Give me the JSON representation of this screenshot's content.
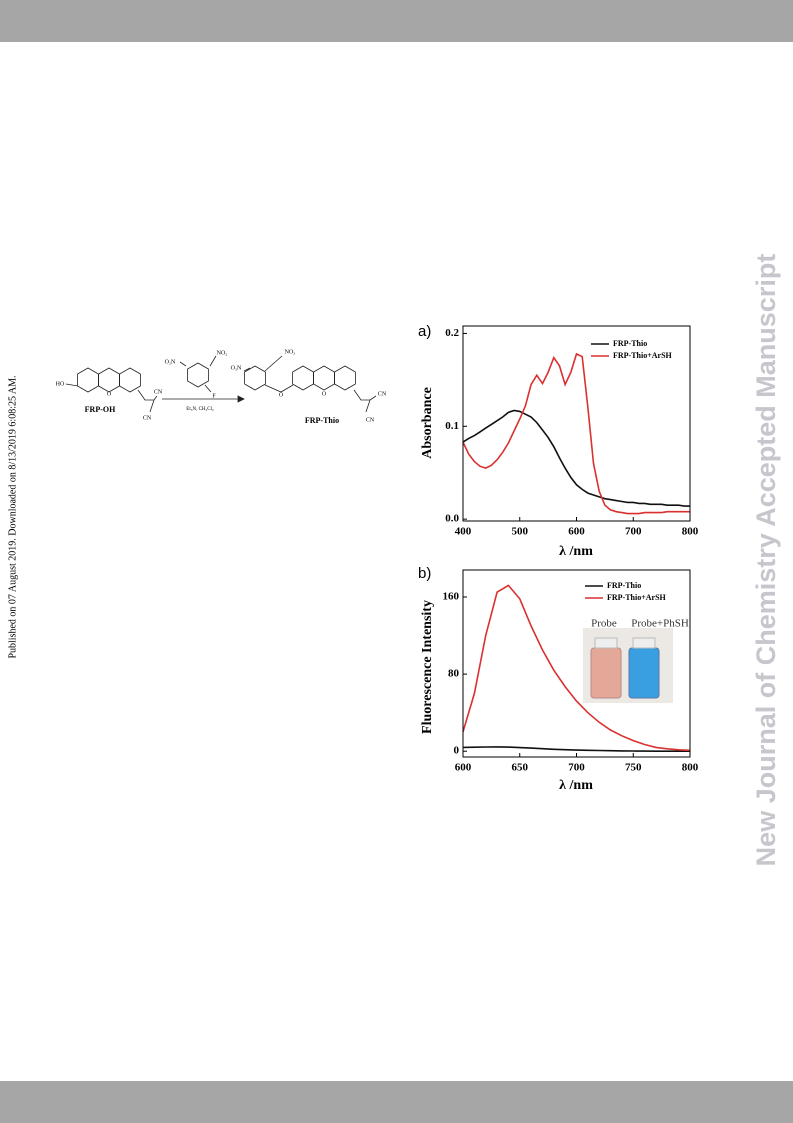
{
  "header_bar": true,
  "side_note": "Published on 07 August 2019. Downloaded on 8/13/2019 6:08:25 AM.",
  "watermark": "New Journal of Chemistry Accepted Manuscript",
  "scheme": {
    "reactant": "FRP-OH",
    "product": "FRP-Thio",
    "reagent": "Et₃N, CH₂Cl₂",
    "labels": [
      "HO",
      "O",
      "CN",
      "CN",
      "O₂N",
      "NO₂",
      "F",
      "O₂N",
      "NO₂",
      "O",
      "O",
      "CN",
      "CN"
    ]
  },
  "chart_data": [
    {
      "type": "line",
      "panel": "a)",
      "xlabel": "λ /nm",
      "ylabel": "Absorbance",
      "xlim": [
        400,
        800
      ],
      "xticks": [
        400,
        500,
        600,
        700,
        800
      ],
      "ylim": [
        -0.002,
        0.208
      ],
      "yticks": [
        {
          "value": 0,
          "label": "0.0"
        },
        0.1,
        0.2
      ],
      "x": [
        400,
        410,
        420,
        430,
        440,
        450,
        460,
        470,
        480,
        490,
        500,
        510,
        520,
        530,
        540,
        550,
        560,
        570,
        580,
        590,
        600,
        610,
        620,
        630,
        640,
        650,
        660,
        670,
        680,
        690,
        700,
        710,
        720,
        730,
        740,
        750,
        760,
        770,
        780,
        790,
        800
      ],
      "series": [
        {
          "name": "FRP-Thio",
          "color": "#111111",
          "values": [
            0.083,
            0.087,
            0.09,
            0.094,
            0.098,
            0.102,
            0.106,
            0.11,
            0.115,
            0.117,
            0.116,
            0.113,
            0.11,
            0.104,
            0.096,
            0.088,
            0.078,
            0.066,
            0.055,
            0.045,
            0.037,
            0.032,
            0.028,
            0.026,
            0.024,
            0.022,
            0.021,
            0.02,
            0.019,
            0.018,
            0.018,
            0.017,
            0.017,
            0.016,
            0.016,
            0.016,
            0.015,
            0.015,
            0.015,
            0.014,
            0.014
          ]
        },
        {
          "name": "FRP-Thio+ArSH",
          "color": "#d9312f",
          "values": [
            0.083,
            0.07,
            0.062,
            0.057,
            0.055,
            0.058,
            0.064,
            0.072,
            0.082,
            0.095,
            0.108,
            0.122,
            0.145,
            0.155,
            0.146,
            0.158,
            0.174,
            0.165,
            0.145,
            0.158,
            0.178,
            0.175,
            0.12,
            0.06,
            0.03,
            0.015,
            0.01,
            0.008,
            0.007,
            0.006,
            0.006,
            0.006,
            0.007,
            0.007,
            0.007,
            0.007,
            0.008,
            0.008,
            0.008,
            0.008,
            0.008
          ]
        }
      ]
    },
    {
      "type": "line",
      "panel": "b)",
      "xlabel": "λ /nm",
      "ylabel": "Fluorescence Intensity",
      "xlim": [
        600,
        800
      ],
      "xticks": [
        600,
        650,
        700,
        750,
        800
      ],
      "ylim": [
        -6,
        188
      ],
      "yticks": [
        0,
        80,
        160
      ],
      "inset": [
        "Probe",
        "Probe+PhSH"
      ],
      "x": [
        600,
        610,
        620,
        630,
        640,
        650,
        660,
        670,
        680,
        690,
        700,
        710,
        720,
        730,
        740,
        750,
        760,
        770,
        780,
        790,
        800
      ],
      "series": [
        {
          "name": "FRP-Thio",
          "color": "#111111",
          "values": [
            4,
            4.2,
            4.4,
            4.5,
            4.3,
            3.8,
            3.2,
            2.6,
            2,
            1.6,
            1.2,
            0.9,
            0.7,
            0.5,
            0.3,
            0.2,
            0.1,
            0,
            0,
            0,
            0
          ]
        },
        {
          "name": "FRP-Thio+ArSH",
          "color": "#d9312f",
          "values": [
            20,
            60,
            120,
            165,
            172,
            158,
            130,
            105,
            84,
            67,
            52,
            40,
            30,
            22,
            16,
            11,
            7,
            4,
            2.5,
            1.5,
            1
          ]
        }
      ]
    }
  ]
}
